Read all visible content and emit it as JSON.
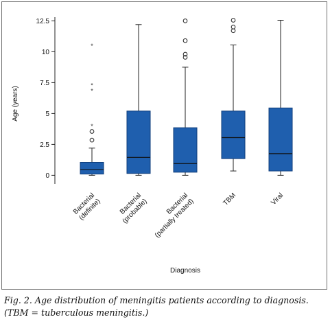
{
  "chart_data": {
    "type": "boxplot",
    "xlabel": "Diagnosis",
    "ylabel": "Age (years)",
    "ylim": [
      -0.7,
      12.8
    ],
    "yticks": [
      {
        "value": 0,
        "label": "0"
      },
      {
        "value": 2.5,
        "label": "2.5"
      },
      {
        "value": 5,
        "label": "5"
      },
      {
        "value": 7.5,
        "label": "7.5"
      },
      {
        "value": 10,
        "label": "10"
      },
      {
        "value": 12.5,
        "label": "12.5"
      }
    ],
    "grid": false,
    "box_color": "#1f5fae",
    "categories": [
      {
        "label_lines": [
          "Bacterial",
          "(definite)"
        ],
        "min": 0,
        "q1": 0.1,
        "median": 0.45,
        "q3": 1.05,
        "max": 2.2,
        "outliers": [
          {
            "value": 2.85,
            "marker": "circle"
          },
          {
            "value": 3.55,
            "marker": "circle"
          },
          {
            "value": 4.0,
            "marker": "star"
          },
          {
            "value": 6.85,
            "marker": "star"
          },
          {
            "value": 7.3,
            "marker": "star"
          },
          {
            "value": 10.5,
            "marker": "star"
          }
        ]
      },
      {
        "label_lines": [
          "Bacterial",
          "(probable)"
        ],
        "min": 0,
        "q1": 0.15,
        "median": 1.45,
        "q3": 5.2,
        "max": 12.2,
        "outliers": []
      },
      {
        "label_lines": [
          "Bacterial",
          "(partially treated)"
        ],
        "min": 0,
        "q1": 0.25,
        "median": 0.95,
        "q3": 3.85,
        "max": 8.75,
        "outliers": [
          {
            "value": 9.55,
            "marker": "circle"
          },
          {
            "value": 9.8,
            "marker": "circle"
          },
          {
            "value": 10.9,
            "marker": "circle"
          },
          {
            "value": 12.5,
            "marker": "circle"
          }
        ]
      },
      {
        "label_lines": [
          "TBM"
        ],
        "min": 0.35,
        "q1": 1.35,
        "median": 3.05,
        "q3": 5.2,
        "max": 10.55,
        "outliers": [
          {
            "value": 11.7,
            "marker": "circle"
          },
          {
            "value": 12.0,
            "marker": "circle"
          },
          {
            "value": 12.55,
            "marker": "circle"
          }
        ]
      },
      {
        "label_lines": [
          "Viral"
        ],
        "min": 0,
        "q1": 0.35,
        "median": 1.75,
        "q3": 5.45,
        "max": 12.55,
        "outliers": []
      }
    ]
  },
  "caption": {
    "line1": "Fig. 2. Age distribution of meningitis patients according to diagnosis.",
    "line2": "(TBM = tuberculous meningitis.)"
  }
}
